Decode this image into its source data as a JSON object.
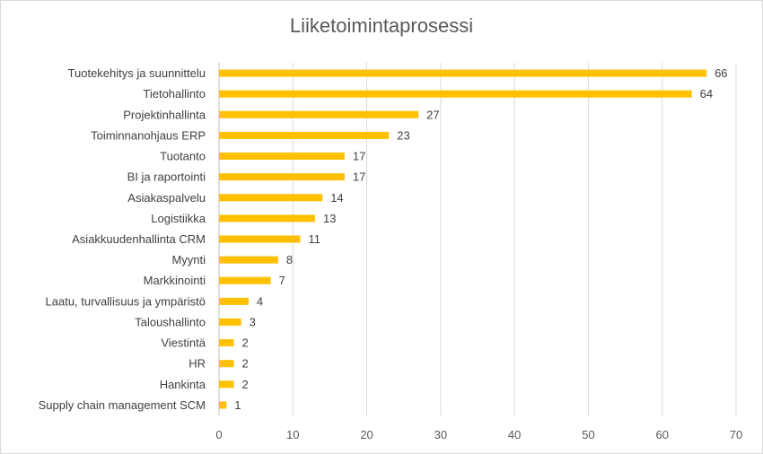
{
  "chart_data": {
    "type": "bar",
    "orientation": "horizontal",
    "title": "Liiketoimintaprosessi",
    "xlabel": "",
    "ylabel": "",
    "xlim": [
      0,
      70
    ],
    "xticks": [
      0,
      10,
      20,
      30,
      40,
      50,
      60,
      70
    ],
    "grid": "vertical",
    "legend": "none",
    "bar_color": "#FFC000",
    "categories": [
      "Tuotekehitys ja suunnittelu",
      "Tietohallinto",
      "Projektinhallinta",
      "Toiminnanohjaus ERP",
      "Tuotanto",
      "BI ja raportointi",
      "Asiakaspalvelu",
      "Logistiikka",
      "Asiakkuudenhallinta CRM",
      "Myynti",
      "Markkinointi",
      "Laatu, turvallisuus ja ympäristö",
      "Taloushallinto",
      "Viestintä",
      "HR",
      "Hankinta",
      "Supply chain management SCM"
    ],
    "values": [
      66,
      64,
      27,
      23,
      17,
      17,
      14,
      13,
      11,
      8,
      7,
      4,
      3,
      2,
      2,
      2,
      1
    ]
  }
}
